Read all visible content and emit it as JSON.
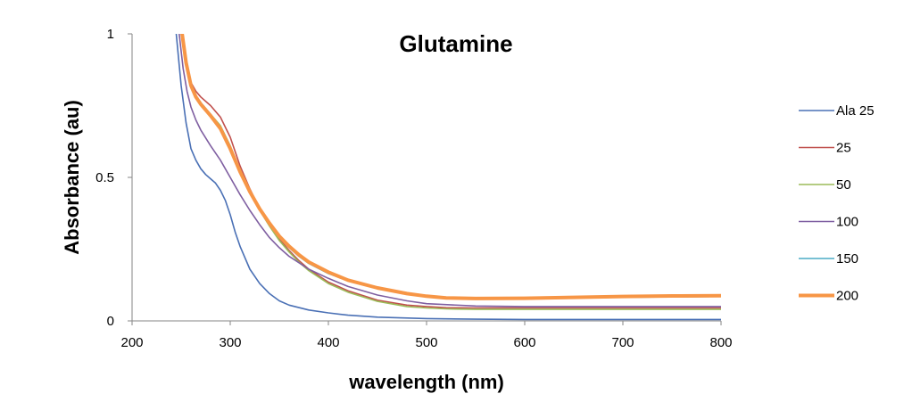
{
  "chart_data": {
    "type": "line",
    "title": "Glutamine",
    "xlabel": "wavelength (nm)",
    "ylabel": "Absorbance (au)",
    "xlim": [
      200,
      800
    ],
    "ylim": [
      0,
      1
    ],
    "x_ticks": [
      200,
      300,
      400,
      500,
      600,
      700,
      800
    ],
    "y_ticks": [
      0,
      0.5,
      1
    ],
    "x_tick_labels": [
      "200",
      "300",
      "400",
      "500",
      "600",
      "700",
      "800"
    ],
    "y_tick_labels": [
      "0",
      "0.5",
      "1"
    ],
    "grid": false,
    "legend_position": "right",
    "series": [
      {
        "name": "Ala 25",
        "color": "#4a70b5",
        "width": "thin",
        "x": [
          245,
          250,
          255,
          260,
          265,
          270,
          275,
          280,
          285,
          290,
          295,
          300,
          305,
          310,
          320,
          330,
          340,
          350,
          360,
          380,
          400,
          420,
          450,
          500,
          550,
          600,
          700,
          800
        ],
        "y": [
          1.0,
          0.82,
          0.69,
          0.6,
          0.56,
          0.53,
          0.51,
          0.495,
          0.48,
          0.455,
          0.42,
          0.37,
          0.31,
          0.26,
          0.18,
          0.13,
          0.095,
          0.07,
          0.055,
          0.038,
          0.028,
          0.02,
          0.013,
          0.008,
          0.006,
          0.005,
          0.005,
          0.005
        ]
      },
      {
        "name": "25",
        "color": "#c0504d",
        "width": "thin",
        "x": [
          251,
          255,
          260,
          265,
          270,
          280,
          290,
          300,
          310,
          320,
          330,
          340,
          350,
          360,
          370,
          380,
          400,
          420,
          450,
          480,
          500,
          520,
          550,
          600,
          700,
          800
        ],
        "y": [
          1.0,
          0.9,
          0.83,
          0.8,
          0.78,
          0.75,
          0.71,
          0.64,
          0.54,
          0.46,
          0.39,
          0.335,
          0.285,
          0.245,
          0.21,
          0.18,
          0.135,
          0.105,
          0.072,
          0.055,
          0.05,
          0.046,
          0.045,
          0.045,
          0.045,
          0.045
        ]
      },
      {
        "name": "50",
        "color": "#9bbb59",
        "width": "thin",
        "x": [
          251,
          255,
          260,
          265,
          270,
          280,
          290,
          300,
          310,
          320,
          330,
          340,
          350,
          360,
          370,
          380,
          400,
          420,
          450,
          480,
          500,
          520,
          550,
          600,
          700,
          800
        ],
        "y": [
          1.0,
          0.89,
          0.82,
          0.78,
          0.76,
          0.72,
          0.68,
          0.61,
          0.525,
          0.45,
          0.385,
          0.33,
          0.28,
          0.24,
          0.205,
          0.175,
          0.13,
          0.1,
          0.068,
          0.05,
          0.045,
          0.042,
          0.04,
          0.04,
          0.04,
          0.04
        ]
      },
      {
        "name": "100",
        "color": "#7f5fa1",
        "width": "thin",
        "x": [
          248,
          252,
          256,
          260,
          265,
          270,
          280,
          290,
          300,
          310,
          320,
          330,
          340,
          350,
          360,
          380,
          400,
          420,
          450,
          480,
          500,
          550,
          600,
          700,
          800
        ],
        "y": [
          1.0,
          0.88,
          0.8,
          0.745,
          0.7,
          0.665,
          0.61,
          0.56,
          0.5,
          0.44,
          0.385,
          0.335,
          0.29,
          0.255,
          0.225,
          0.18,
          0.148,
          0.12,
          0.09,
          0.07,
          0.06,
          0.052,
          0.05,
          0.05,
          0.05
        ]
      },
      {
        "name": "150",
        "color": "#4bacc6",
        "width": "thin",
        "x": [
          251,
          255,
          260,
          265,
          270,
          280,
          290,
          300,
          310,
          320,
          330,
          340,
          350,
          360,
          370,
          380,
          400,
          420,
          450,
          500,
          520,
          550,
          600,
          700,
          800
        ],
        "y": [
          1.0,
          0.9,
          0.82,
          0.78,
          0.76,
          0.72,
          0.67,
          0.6,
          0.52,
          0.445,
          0.385,
          0.335,
          0.29,
          0.255,
          0.225,
          0.2,
          0.165,
          0.14,
          0.115,
          0.085,
          0.078,
          0.077,
          0.078,
          0.082,
          0.085
        ]
      },
      {
        "name": "200",
        "color": "#f79646",
        "width": "thick",
        "x": [
          251,
          255,
          260,
          265,
          270,
          280,
          290,
          300,
          310,
          320,
          330,
          340,
          350,
          360,
          370,
          380,
          400,
          420,
          450,
          480,
          500,
          520,
          550,
          600,
          650,
          700,
          750,
          800
        ],
        "y": [
          1.0,
          0.9,
          0.82,
          0.78,
          0.755,
          0.715,
          0.67,
          0.6,
          0.52,
          0.45,
          0.39,
          0.34,
          0.295,
          0.26,
          0.23,
          0.205,
          0.17,
          0.142,
          0.115,
          0.095,
          0.086,
          0.08,
          0.078,
          0.079,
          0.082,
          0.085,
          0.087,
          0.088
        ]
      }
    ]
  }
}
